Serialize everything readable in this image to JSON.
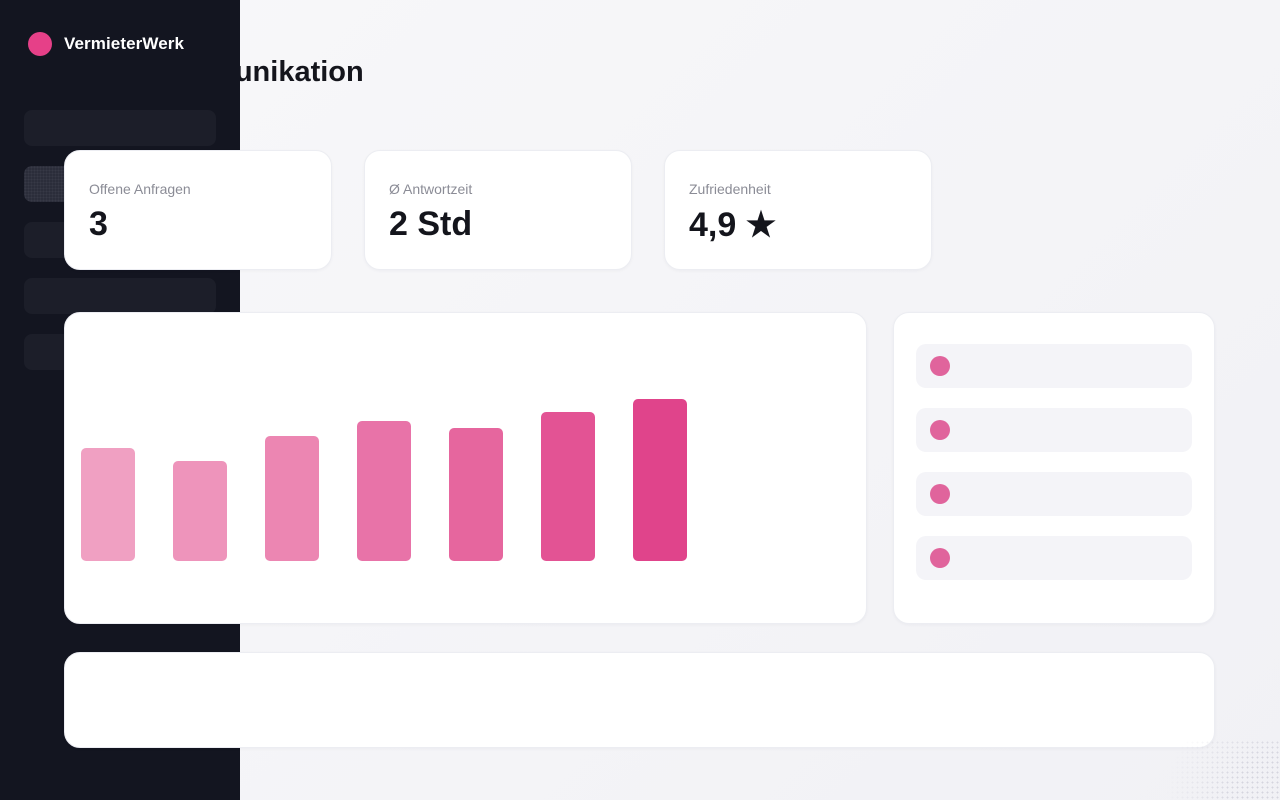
{
  "brand": {
    "name": "VermieterWerk",
    "color": "#e64088"
  },
  "page": {
    "title": "Mieterkommunikation"
  },
  "stats": [
    {
      "label": "Offene Anfragen",
      "value": "3"
    },
    {
      "label": "Ø Antwortzeit",
      "value": "2 Std"
    },
    {
      "label": "Zufriedenheit",
      "value": "4,9 ★"
    }
  ],
  "chart_data": {
    "type": "bar",
    "values": [
      113,
      100,
      125,
      140,
      133,
      149,
      162
    ],
    "colors": [
      "#f0a0c2",
      "#ee94bb",
      "#ec86b2",
      "#e873a8",
      "#e6669e",
      "#e35394",
      "#e0448b"
    ],
    "ylim": [
      0,
      200
    ]
  },
  "activity_list": {
    "row_count": 4,
    "dot_color": "#e0649c"
  },
  "colors": {
    "sidebar": "#131520",
    "accent": "#e64088"
  }
}
